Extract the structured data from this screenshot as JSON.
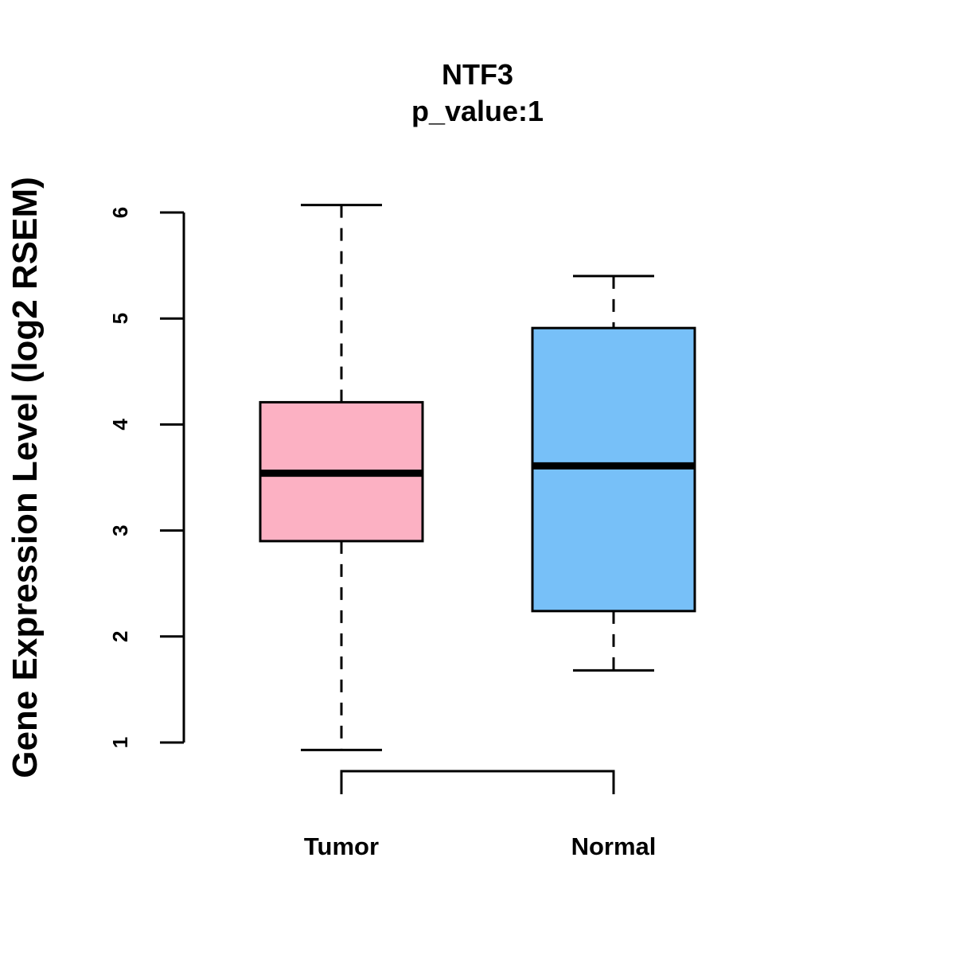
{
  "chart_data": {
    "type": "box",
    "title": "NTF3",
    "subtitle": "p_value:1",
    "xlabel": "",
    "ylabel": "Gene Expression Level (log2 RSEM)",
    "ylim": [
      1,
      6
    ],
    "yticks": [
      "1",
      "2",
      "3",
      "4",
      "5",
      "6"
    ],
    "grid": false,
    "categories": [
      "Tumor",
      "Normal"
    ],
    "series": [
      {
        "category": "Tumor",
        "color": "#FCB1C3",
        "whisker_low": 0.93,
        "q1": 2.9,
        "median": 3.54,
        "q3": 4.21,
        "whisker_high": 6.07
      },
      {
        "category": "Normal",
        "color": "#77C0F8",
        "whisker_low": 1.68,
        "q1": 2.24,
        "median": 3.61,
        "q3": 4.91,
        "whisker_high": 5.4
      }
    ],
    "comparison_bracket": [
      "Tumor",
      "Normal"
    ]
  }
}
